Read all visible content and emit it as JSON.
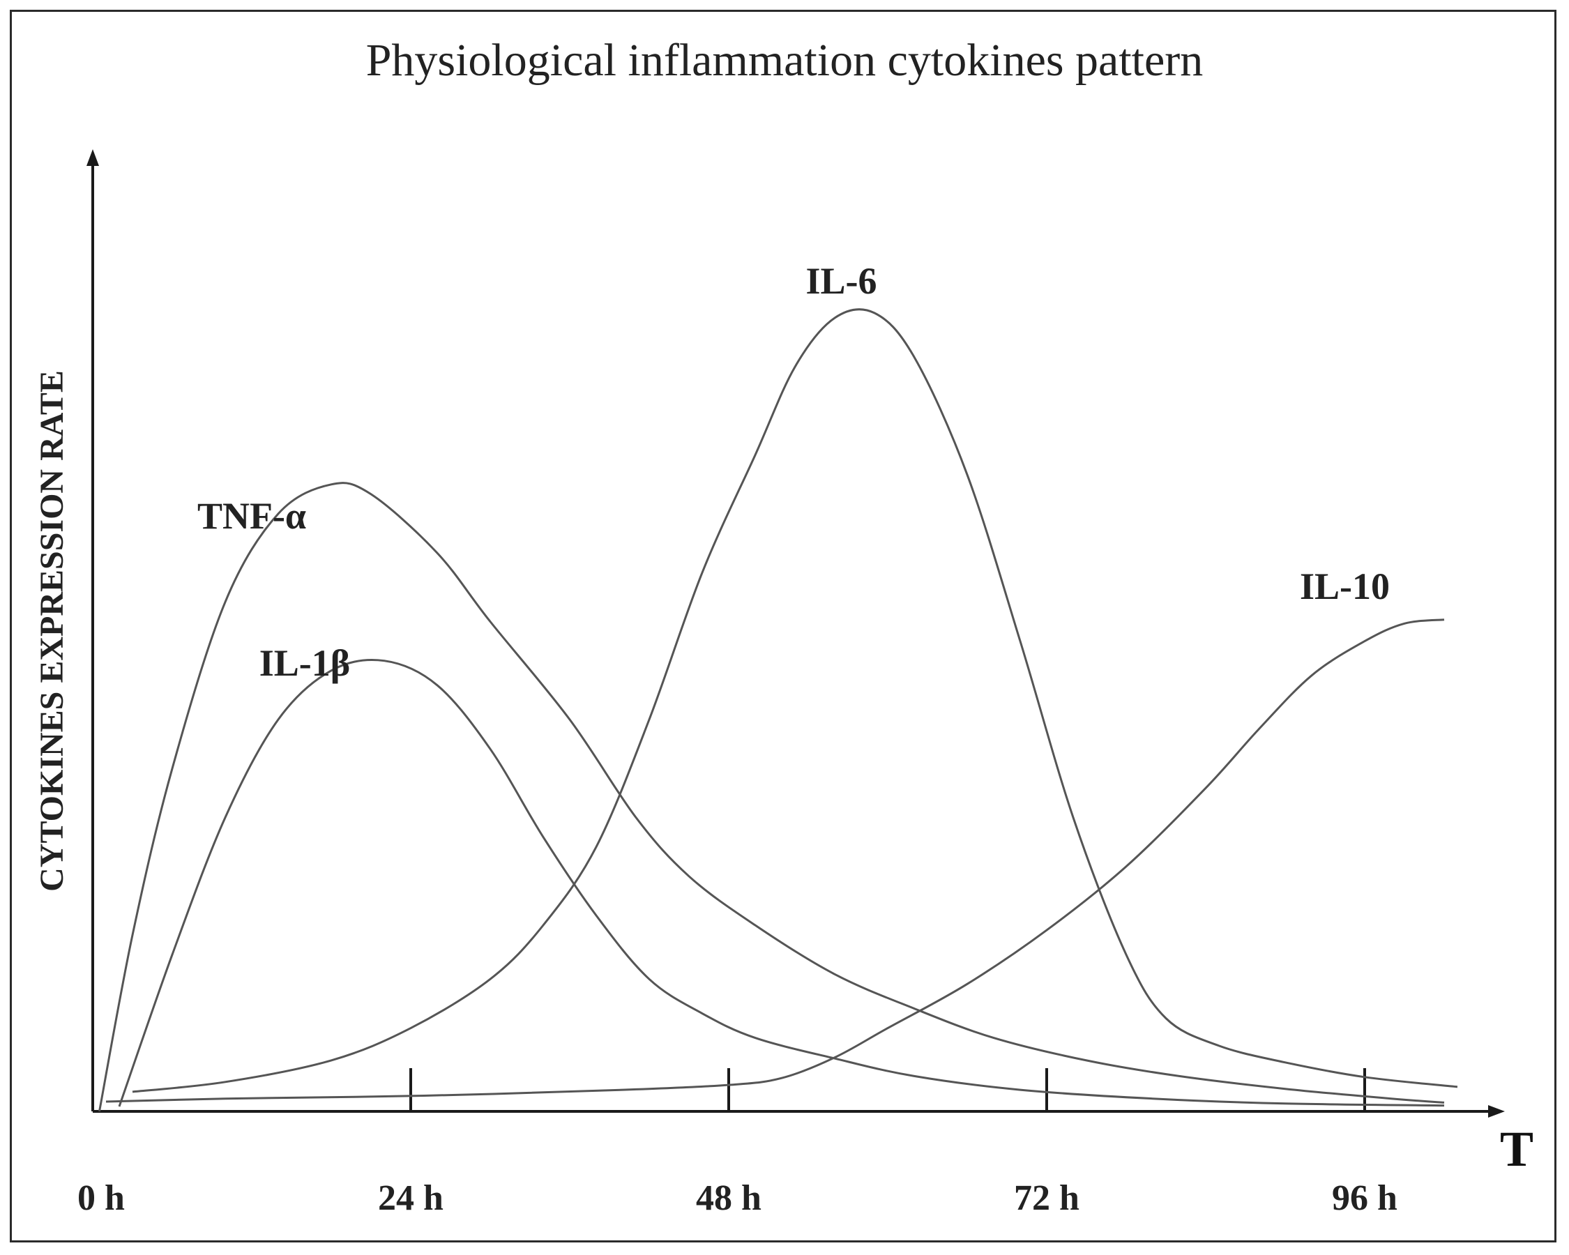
{
  "chart_data": {
    "type": "line",
    "title": "Physiological inflammation cytokines pattern",
    "ylabel": "CYTOKINES EXPRESSION RATE",
    "xlabel": "T",
    "xlim": [
      0,
      104
    ],
    "ylim": [
      0,
      100
    ],
    "x_ticks": [
      {
        "value": 0,
        "label": "0 h"
      },
      {
        "value": 24,
        "label": "24 h"
      },
      {
        "value": 48,
        "label": "48 h"
      },
      {
        "value": 72,
        "label": "72 h"
      },
      {
        "value": 96,
        "label": "96 h"
      }
    ],
    "grid": false,
    "series": [
      {
        "name": "TNF-α",
        "points": [
          [
            0.5,
            0
          ],
          [
            3,
            18
          ],
          [
            6,
            35
          ],
          [
            10,
            52
          ],
          [
            14,
            61
          ],
          [
            18,
            64
          ],
          [
            21,
            63
          ],
          [
            26,
            57
          ],
          [
            30,
            50
          ],
          [
            36,
            40
          ],
          [
            41,
            30
          ],
          [
            45,
            24
          ],
          [
            50,
            19
          ],
          [
            56,
            14
          ],
          [
            62,
            10.5
          ],
          [
            68,
            7.5
          ],
          [
            75,
            5.2
          ],
          [
            82,
            3.6
          ],
          [
            90,
            2.3
          ],
          [
            98,
            1.3
          ],
          [
            102,
            0.9
          ]
        ]
      },
      {
        "name": "IL-1β",
        "points": [
          [
            2,
            0.5
          ],
          [
            6,
            16
          ],
          [
            10,
            30
          ],
          [
            14,
            40
          ],
          [
            18,
            45
          ],
          [
            22,
            46
          ],
          [
            26,
            43.5
          ],
          [
            30,
            37
          ],
          [
            34,
            28
          ],
          [
            38,
            20
          ],
          [
            42,
            13.5
          ],
          [
            46,
            10
          ],
          [
            50,
            7.5
          ],
          [
            56,
            5.4
          ],
          [
            62,
            3.6
          ],
          [
            70,
            2.2
          ],
          [
            80,
            1.3
          ],
          [
            90,
            0.8
          ],
          [
            102,
            0.6
          ]
        ]
      },
      {
        "name": "IL-6",
        "points": [
          [
            3,
            2
          ],
          [
            10,
            3
          ],
          [
            18,
            5.2
          ],
          [
            24,
            8.5
          ],
          [
            30,
            13.5
          ],
          [
            34,
            19
          ],
          [
            38,
            27
          ],
          [
            42,
            40
          ],
          [
            46,
            55
          ],
          [
            50,
            67
          ],
          [
            53,
            76
          ],
          [
            56,
            81
          ],
          [
            59,
            81.5
          ],
          [
            62,
            77
          ],
          [
            66,
            65
          ],
          [
            70,
            48
          ],
          [
            74,
            30
          ],
          [
            78,
            16
          ],
          [
            81,
            9.5
          ],
          [
            85,
            6.7
          ],
          [
            90,
            5
          ],
          [
            96,
            3.5
          ],
          [
            103,
            2.5
          ]
        ]
      },
      {
        "name": "IL-10",
        "points": [
          [
            1,
            1
          ],
          [
            10,
            1.3
          ],
          [
            25,
            1.6
          ],
          [
            40,
            2.2
          ],
          [
            48,
            2.7
          ],
          [
            52,
            3.4
          ],
          [
            56,
            5.5
          ],
          [
            60,
            8.5
          ],
          [
            66,
            13
          ],
          [
            72,
            18.5
          ],
          [
            78,
            25
          ],
          [
            84,
            33
          ],
          [
            88,
            39
          ],
          [
            92,
            44.5
          ],
          [
            96,
            48
          ],
          [
            99,
            49.8
          ],
          [
            102,
            50.2
          ]
        ]
      }
    ],
    "annotations": [
      {
        "text": "TNF-α",
        "series": "TNF-α"
      },
      {
        "text": "IL-1β",
        "series": "IL-1β"
      },
      {
        "text": "IL-6",
        "series": "IL-6"
      },
      {
        "text": "IL-10",
        "series": "IL-10"
      }
    ],
    "colors": {
      "line": "#555555",
      "axis": "#1a1a1a",
      "frame": "#2b2b2b"
    }
  }
}
